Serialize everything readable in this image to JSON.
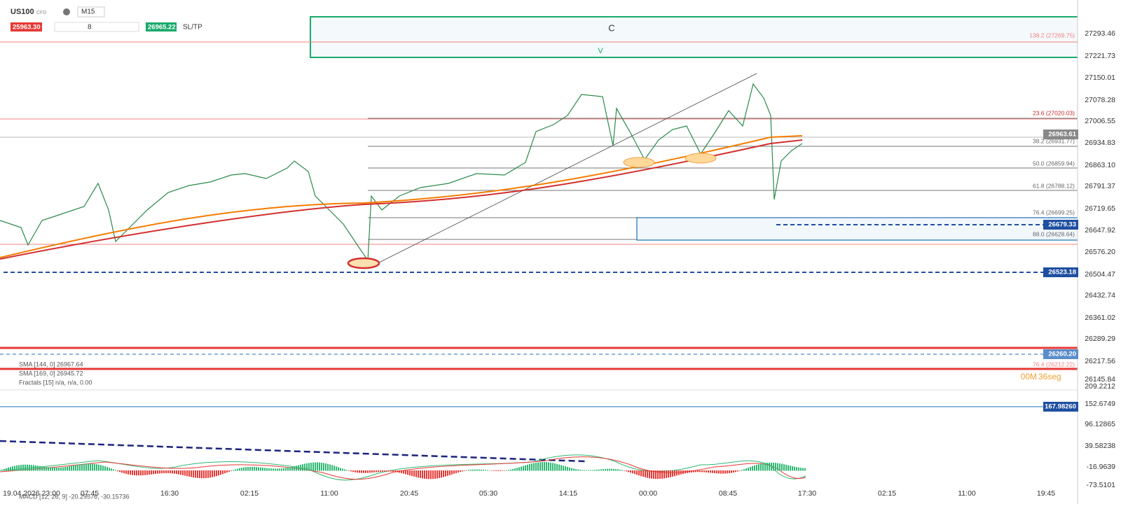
{
  "toolbar": {
    "symbol": "US100",
    "symbol_type": "CFD",
    "timeframe": "M15",
    "sell_price": "25963.30",
    "quantity": "8",
    "buy_price": "26965.22",
    "sltp": "SL/TP"
  },
  "zone_labels": [
    "C",
    "V"
  ],
  "timer": {
    "minutes": "00M",
    "seconds": "36seg"
  },
  "price_axis": [
    "27293.46",
    "27221.73",
    "27150.01",
    "27078.28",
    "27006.55",
    "26934.83",
    "26863.10",
    "26791.37",
    "26719.65",
    "26647.92",
    "26576.20",
    "26504.47",
    "26432.74",
    "26361.02",
    "26289.29",
    "26217.56",
    "26145.84"
  ],
  "indicator_axis": [
    "209.2212",
    "152.6749",
    "96.12865",
    "39.58238",
    "-16.9639",
    "-73.5101"
  ],
  "time_axis": [
    "19.04.2026 23:00",
    "07:45",
    "16:30",
    "02:15",
    "11:00",
    "20:45",
    "05:30",
    "14:15",
    "00:00",
    "08:45",
    "17:30",
    "02:15",
    "11:00",
    "19:45"
  ],
  "fib_levels": [
    "138.2 (27269.75)",
    "23.6 (27020.03)",
    "38.2 (26931.77)",
    "50.0 (26859.94)",
    "61.8 (26788.12)",
    "76.4 (26699.25)",
    "88.0 (26628.64)",
    "76.4 (26212.22)"
  ],
  "price_tags": [
    "26963.61",
    "26679.33",
    "26523.18",
    "26260.20",
    "167.98260"
  ],
  "indicators": [
    "SMA [144, 0] 26967.64",
    "SMA [169, 0] 26945.72",
    "Fractals [15] n/a, n/a, 0.00",
    "MACD [12, 26, 9] -20.29576, -30.15736"
  ]
}
